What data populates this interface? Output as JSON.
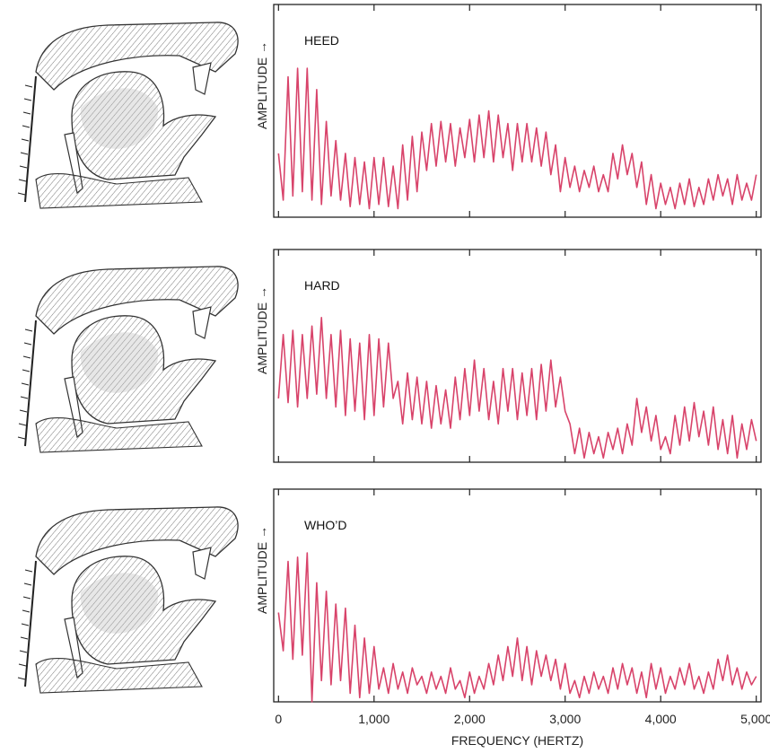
{
  "chart_data": [
    {
      "type": "line",
      "title": "HEED",
      "y_label": "AMPLITUDE →",
      "color": "#d8436a",
      "xlim": [
        -50,
        5050
      ],
      "ylim": [
        0,
        100
      ],
      "x": [
        0,
        50,
        100,
        150,
        200,
        250,
        300,
        350,
        400,
        450,
        500,
        550,
        600,
        650,
        700,
        750,
        800,
        850,
        900,
        950,
        1000,
        1050,
        1100,
        1150,
        1200,
        1250,
        1300,
        1350,
        1400,
        1450,
        1500,
        1550,
        1600,
        1650,
        1700,
        1750,
        1800,
        1850,
        1900,
        1950,
        2000,
        2050,
        2100,
        2150,
        2200,
        2250,
        2300,
        2350,
        2400,
        2450,
        2500,
        2550,
        2600,
        2650,
        2700,
        2750,
        2800,
        2850,
        2900,
        2950,
        3000,
        3050,
        3100,
        3150,
        3200,
        3250,
        3300,
        3350,
        3400,
        3450,
        3500,
        3550,
        3600,
        3650,
        3700,
        3750,
        3800,
        3850,
        3900,
        3950,
        4000,
        4050,
        4100,
        4150,
        4200,
        4250,
        4300,
        4350,
        4400,
        4450,
        4500,
        4550,
        4600,
        4650,
        4700,
        4750,
        4800,
        4850,
        4900,
        4950,
        5000
      ],
      "values": [
        30,
        8,
        66,
        10,
        70,
        12,
        70,
        8,
        60,
        6,
        45,
        10,
        36,
        8,
        30,
        5,
        28,
        6,
        26,
        4,
        28,
        6,
        28,
        5,
        24,
        4,
        34,
        8,
        38,
        12,
        40,
        22,
        44,
        24,
        45,
        26,
        44,
        24,
        42,
        28,
        46,
        26,
        48,
        28,
        50,
        26,
        48,
        28,
        44,
        22,
        44,
        26,
        44,
        26,
        42,
        24,
        40,
        20,
        34,
        12,
        28,
        14,
        24,
        12,
        22,
        14,
        24,
        12,
        20,
        12,
        30,
        18,
        34,
        20,
        30,
        14,
        26,
        6,
        20,
        4,
        16,
        6,
        14,
        4,
        16,
        6,
        18,
        5,
        14,
        6,
        18,
        8,
        20,
        10,
        18,
        6,
        20,
        8,
        16,
        8,
        20
      ]
    },
    {
      "type": "line",
      "title": "HARD",
      "y_label": "AMPLITUDE →",
      "color": "#d8436a",
      "xlim": [
        -50,
        5050
      ],
      "ylim": [
        0,
        100
      ],
      "x": [
        0,
        50,
        100,
        150,
        200,
        250,
        300,
        350,
        400,
        450,
        500,
        550,
        600,
        650,
        700,
        750,
        800,
        850,
        900,
        950,
        1000,
        1050,
        1100,
        1150,
        1200,
        1250,
        1300,
        1350,
        1400,
        1450,
        1500,
        1550,
        1600,
        1650,
        1700,
        1750,
        1800,
        1850,
        1900,
        1950,
        2000,
        2050,
        2100,
        2150,
        2200,
        2250,
        2300,
        2350,
        2400,
        2450,
        2500,
        2550,
        2600,
        2650,
        2700,
        2750,
        2800,
        2850,
        2900,
        2950,
        3000,
        3050,
        3100,
        3150,
        3200,
        3250,
        3300,
        3350,
        3400,
        3450,
        3500,
        3550,
        3600,
        3650,
        3700,
        3750,
        3800,
        3850,
        3900,
        3950,
        4000,
        4050,
        4100,
        4150,
        4200,
        4250,
        4300,
        4350,
        4400,
        4450,
        4500,
        4550,
        4600,
        4650,
        4700,
        4750,
        4800,
        4850,
        4900,
        4950,
        5000
      ],
      "values": [
        30,
        60,
        28,
        62,
        26,
        60,
        30,
        64,
        32,
        68,
        30,
        60,
        26,
        62,
        22,
        58,
        24,
        56,
        20,
        60,
        22,
        58,
        26,
        56,
        30,
        38,
        18,
        42,
        20,
        40,
        18,
        38,
        16,
        36,
        18,
        34,
        16,
        40,
        20,
        44,
        22,
        48,
        24,
        44,
        20,
        38,
        18,
        44,
        24,
        44,
        20,
        42,
        22,
        44,
        20,
        46,
        24,
        48,
        26,
        40,
        24,
        18,
        4,
        16,
        2,
        14,
        4,
        12,
        2,
        14,
        6,
        16,
        4,
        18,
        8,
        30,
        14,
        26,
        10,
        22,
        6,
        12,
        4,
        22,
        8,
        26,
        10,
        28,
        12,
        24,
        8,
        26,
        6,
        20,
        4,
        22,
        2,
        18,
        6,
        20,
        10
      ]
    },
    {
      "type": "line",
      "title": "WHO’D",
      "y_label": "AMPLITUDE →",
      "x_label": "FREQUENCY (HERTZ)",
      "color": "#d8436a",
      "xlim": [
        -50,
        5050
      ],
      "ylim": [
        0,
        100
      ],
      "xticks": [
        0,
        {
          "value": 1000,
          "label": "1,000"
        },
        {
          "value": 2000,
          "label": "2,000"
        },
        {
          "value": 3000,
          "label": "3,000"
        },
        {
          "value": 4000,
          "label": "4,000"
        },
        {
          "value": 5000,
          "label": "5,000"
        }
      ],
      "x": [
        0,
        50,
        100,
        150,
        200,
        250,
        300,
        350,
        400,
        450,
        500,
        550,
        600,
        650,
        700,
        750,
        800,
        850,
        900,
        950,
        1000,
        1050,
        1100,
        1150,
        1200,
        1250,
        1300,
        1350,
        1400,
        1450,
        1500,
        1550,
        1600,
        1650,
        1700,
        1750,
        1800,
        1850,
        1900,
        1950,
        2000,
        2050,
        2100,
        2150,
        2200,
        2250,
        2300,
        2350,
        2400,
        2450,
        2500,
        2550,
        2600,
        2650,
        2700,
        2750,
        2800,
        2850,
        2900,
        2950,
        3000,
        3050,
        3100,
        3150,
        3200,
        3250,
        3300,
        3350,
        3400,
        3450,
        3500,
        3550,
        3600,
        3650,
        3700,
        3750,
        3800,
        3850,
        3900,
        3950,
        4000,
        4050,
        4100,
        4150,
        4200,
        4250,
        4300,
        4350,
        4400,
        4450,
        4500,
        4550,
        4600,
        4650,
        4700,
        4750,
        4800,
        4850,
        4900,
        4950,
        5000
      ],
      "values": [
        42,
        24,
        66,
        20,
        68,
        22,
        70,
        0,
        56,
        10,
        52,
        8,
        46,
        10,
        44,
        4,
        36,
        2,
        30,
        4,
        26,
        6,
        16,
        4,
        18,
        6,
        14,
        4,
        16,
        8,
        12,
        4,
        14,
        6,
        12,
        4,
        16,
        6,
        10,
        2,
        14,
        4,
        12,
        6,
        18,
        8,
        22,
        10,
        26,
        12,
        30,
        10,
        26,
        8,
        24,
        12,
        22,
        10,
        20,
        6,
        18,
        4,
        10,
        2,
        12,
        4,
        14,
        6,
        12,
        4,
        16,
        6,
        18,
        8,
        16,
        4,
        14,
        2,
        18,
        6,
        16,
        4,
        12,
        6,
        16,
        8,
        18,
        6,
        12,
        4,
        14,
        6,
        20,
        10,
        22,
        8,
        16,
        6,
        14,
        8,
        12
      ]
    }
  ]
}
